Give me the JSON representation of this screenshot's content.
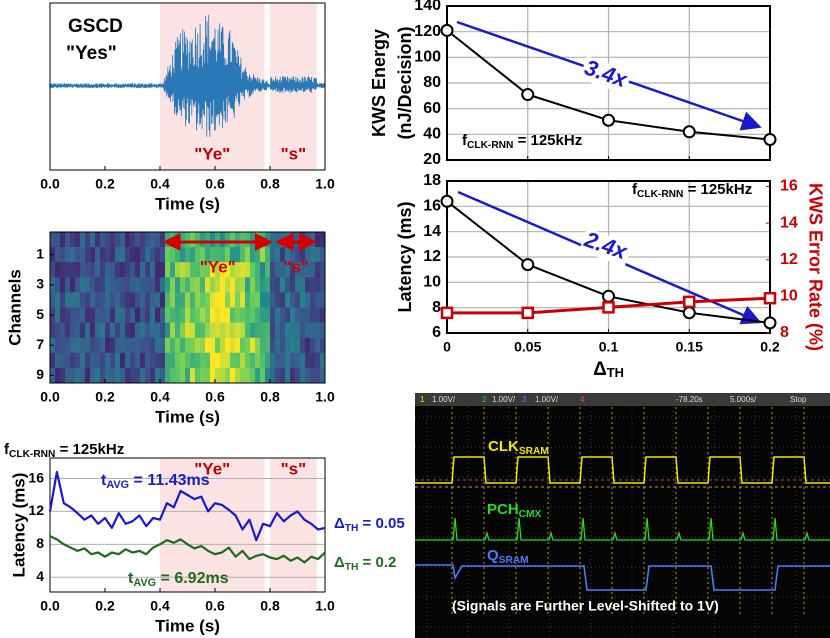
{
  "chart_data": [
    {
      "type": "waveform",
      "title": "GSCD",
      "subtitle": "\"Yes\"",
      "xlabel": "Time (s)",
      "xlim": [
        0,
        1
      ],
      "xticks": [
        {
          "value": 0,
          "label": "0.0"
        },
        0.2,
        0.4,
        0.6,
        0.8,
        {
          "value": 1,
          "label": "1.0"
        }
      ],
      "color": "#2a78b6",
      "region_style": "shade",
      "region_color": "#fbe3e3",
      "region_label_color": "#c00000",
      "regions": [
        {
          "label": "\"Ye\"",
          "x": [
            0.4,
            0.78
          ]
        },
        {
          "label": "\"s\"",
          "x": [
            0.8,
            0.97
          ]
        }
      ]
    },
    {
      "type": "heatmap",
      "ylabel": "Channels",
      "xlabel": "Time (s)",
      "colormap": "viridis",
      "xlim": [
        0,
        1
      ],
      "xticks": [
        {
          "value": 0,
          "label": "0.0"
        },
        0.2,
        0.4,
        0.6,
        0.8,
        {
          "value": 1,
          "label": "1.0"
        }
      ],
      "ylim": [
        9.5,
        -0.5
      ],
      "yticks": [
        1,
        3,
        5,
        7,
        9
      ],
      "region_style": "arrow",
      "region_color": "#d40000",
      "region_label_color": "#d40000",
      "regions": [
        {
          "label": "\"Ye\"",
          "x": [
            0.42,
            0.8
          ]
        },
        {
          "label": "\"s\"",
          "x": [
            0.83,
            0.96
          ]
        }
      ]
    },
    {
      "type": "line",
      "subtitle": [
        "f",
        "CLK-RNN",
        " = 125kHz"
      ],
      "xlabel": "Time (s)",
      "ylabel": "Latency (ms)",
      "xlim": [
        0,
        1
      ],
      "xticks": [
        {
          "value": 0,
          "label": "0.0"
        },
        0.2,
        0.4,
        0.6,
        0.8,
        {
          "value": 1,
          "label": "1.0"
        }
      ],
      "ylim": [
        2.2,
        18.5
      ],
      "yticks": [
        4,
        8,
        12,
        16
      ],
      "grid": true,
      "region_style": "shade",
      "region_color": "#fbe3e3",
      "region_label_color": "#c00000",
      "regions": [
        {
          "label": "\"Ye\"",
          "x": [
            0.4,
            0.78
          ]
        },
        {
          "label": "\"s\"",
          "x": [
            0.8,
            0.97
          ]
        }
      ],
      "x": [
        0,
        0.025,
        0.05,
        0.075,
        0.1,
        0.125,
        0.15,
        0.175,
        0.2,
        0.225,
        0.25,
        0.275,
        0.3,
        0.325,
        0.35,
        0.375,
        0.4,
        0.425,
        0.45,
        0.475,
        0.5,
        0.525,
        0.55,
        0.575,
        0.6,
        0.625,
        0.65,
        0.675,
        0.7,
        0.725,
        0.75,
        0.775,
        0.8,
        0.825,
        0.85,
        0.875,
        0.9,
        0.925,
        0.95,
        0.975,
        1
      ],
      "series": [
        {
          "name": [
            "Δ",
            "TH",
            " = 0.05"
          ],
          "color": "#1a1acc",
          "values": [
            12,
            16.8,
            13,
            12.5,
            11.8,
            11,
            11.5,
            10.5,
            11.2,
            10,
            11.8,
            10.5,
            10.8,
            11.5,
            10.2,
            11.2,
            11,
            13,
            12.5,
            14.5,
            14,
            13.5,
            13.8,
            12,
            13,
            12.8,
            12.2,
            11.5,
            9.8,
            11,
            8.5,
            10.5,
            10.2,
            11.8,
            10.8,
            11.5,
            12,
            11,
            10.5,
            9.8,
            10
          ]
        },
        {
          "name": [
            "Δ",
            "TH",
            " = 0.2"
          ],
          "color": "#1e6b1e",
          "values": [
            9,
            8.6,
            8,
            7.6,
            7.2,
            7.5,
            6.8,
            7,
            6.5,
            7,
            6.8,
            7.4,
            7,
            7.2,
            6.8,
            7.6,
            8,
            8.5,
            8.2,
            8.6,
            8,
            7.5,
            7.8,
            7.2,
            6.8,
            7,
            7.6,
            6.5,
            7.2,
            6.2,
            6.6,
            6.8,
            6.4,
            6.2,
            6.6,
            6,
            6.4,
            5.8,
            6.5,
            6.2,
            7
          ]
        }
      ],
      "annotations": [
        {
          "text": [
            "t",
            "AVG",
            " = 11.43ms"
          ],
          "color": "#1a1acc"
        },
        {
          "text": [
            "t",
            "AVG",
            " = 6.92ms"
          ],
          "color": "#1e6b1e"
        }
      ]
    },
    {
      "type": "line",
      "ylabel": [
        "KWS Energy",
        "(nJ/Decision)"
      ],
      "xlim": [
        0,
        0.2
      ],
      "xticks": [
        0,
        0.05,
        0.1,
        0.15,
        0.2
      ],
      "xtick_labels": false,
      "ylim": [
        20,
        140
      ],
      "yticks": [
        20,
        40,
        60,
        80,
        100,
        120,
        140
      ],
      "grid": true,
      "x": [
        0,
        0.05,
        0.1,
        0.15,
        0.2
      ],
      "series": [
        {
          "color": "#000000",
          "marker": "circle",
          "values": [
            121,
            71,
            51,
            42,
            36
          ]
        }
      ],
      "annotations": [
        {
          "text": [
            "f",
            "CLK-RNN",
            " = 125kHz"
          ],
          "color": "#000000"
        },
        {
          "text": "3.4x",
          "color": "#1a1acc"
        }
      ]
    },
    {
      "type": "line",
      "xlabel": [
        "Δ",
        "TH"
      ],
      "ylabel": "Latency (ms)",
      "y2label": "KWS Error Rate (%)",
      "y2_color": "#cc0000",
      "xlim": [
        0,
        0.2
      ],
      "xticks": [
        0,
        0.05,
        0.1,
        0.15,
        0.2
      ],
      "ylim": [
        6,
        18
      ],
      "yticks": [
        6,
        8,
        10,
        12,
        14,
        16,
        18
      ],
      "y2lim": [
        8,
        16.3
      ],
      "y2ticks": [
        8,
        10,
        12,
        14,
        16
      ],
      "grid": true,
      "x": [
        0,
        0.05,
        0.1,
        0.15,
        0.2
      ],
      "series": [
        {
          "color": "#000000",
          "marker": "circle",
          "values": [
            16.4,
            11.4,
            8.9,
            7.6,
            6.8
          ]
        },
        {
          "color": "#cc0000",
          "marker": "square",
          "axis": "y2",
          "values": [
            9.1,
            9.1,
            9.4,
            9.7,
            9.9
          ]
        }
      ],
      "annotations": [
        {
          "text": [
            "f",
            "CLK-RNN",
            " = 125kHz"
          ],
          "color": "#000000"
        },
        {
          "text": "2.4x",
          "color": "#1a1acc"
        }
      ]
    }
  ],
  "scope": {
    "header": [
      "1",
      "1.00V/",
      "2",
      "1.00V/",
      "3",
      "1.00V/",
      "4",
      "-78.20s",
      "5.000s/",
      "Stop"
    ],
    "labels": [
      {
        "text": [
          "CLK",
          "SRAM"
        ],
        "color": "#f2e600"
      },
      {
        "text": [
          "PCH",
          "CMX"
        ],
        "color": "#22dd22"
      },
      {
        "text": [
          "Q",
          "SRAM"
        ],
        "color": "#4a7cff"
      }
    ],
    "caption": "(Signals are Further Level-Shifted to 1V)"
  }
}
